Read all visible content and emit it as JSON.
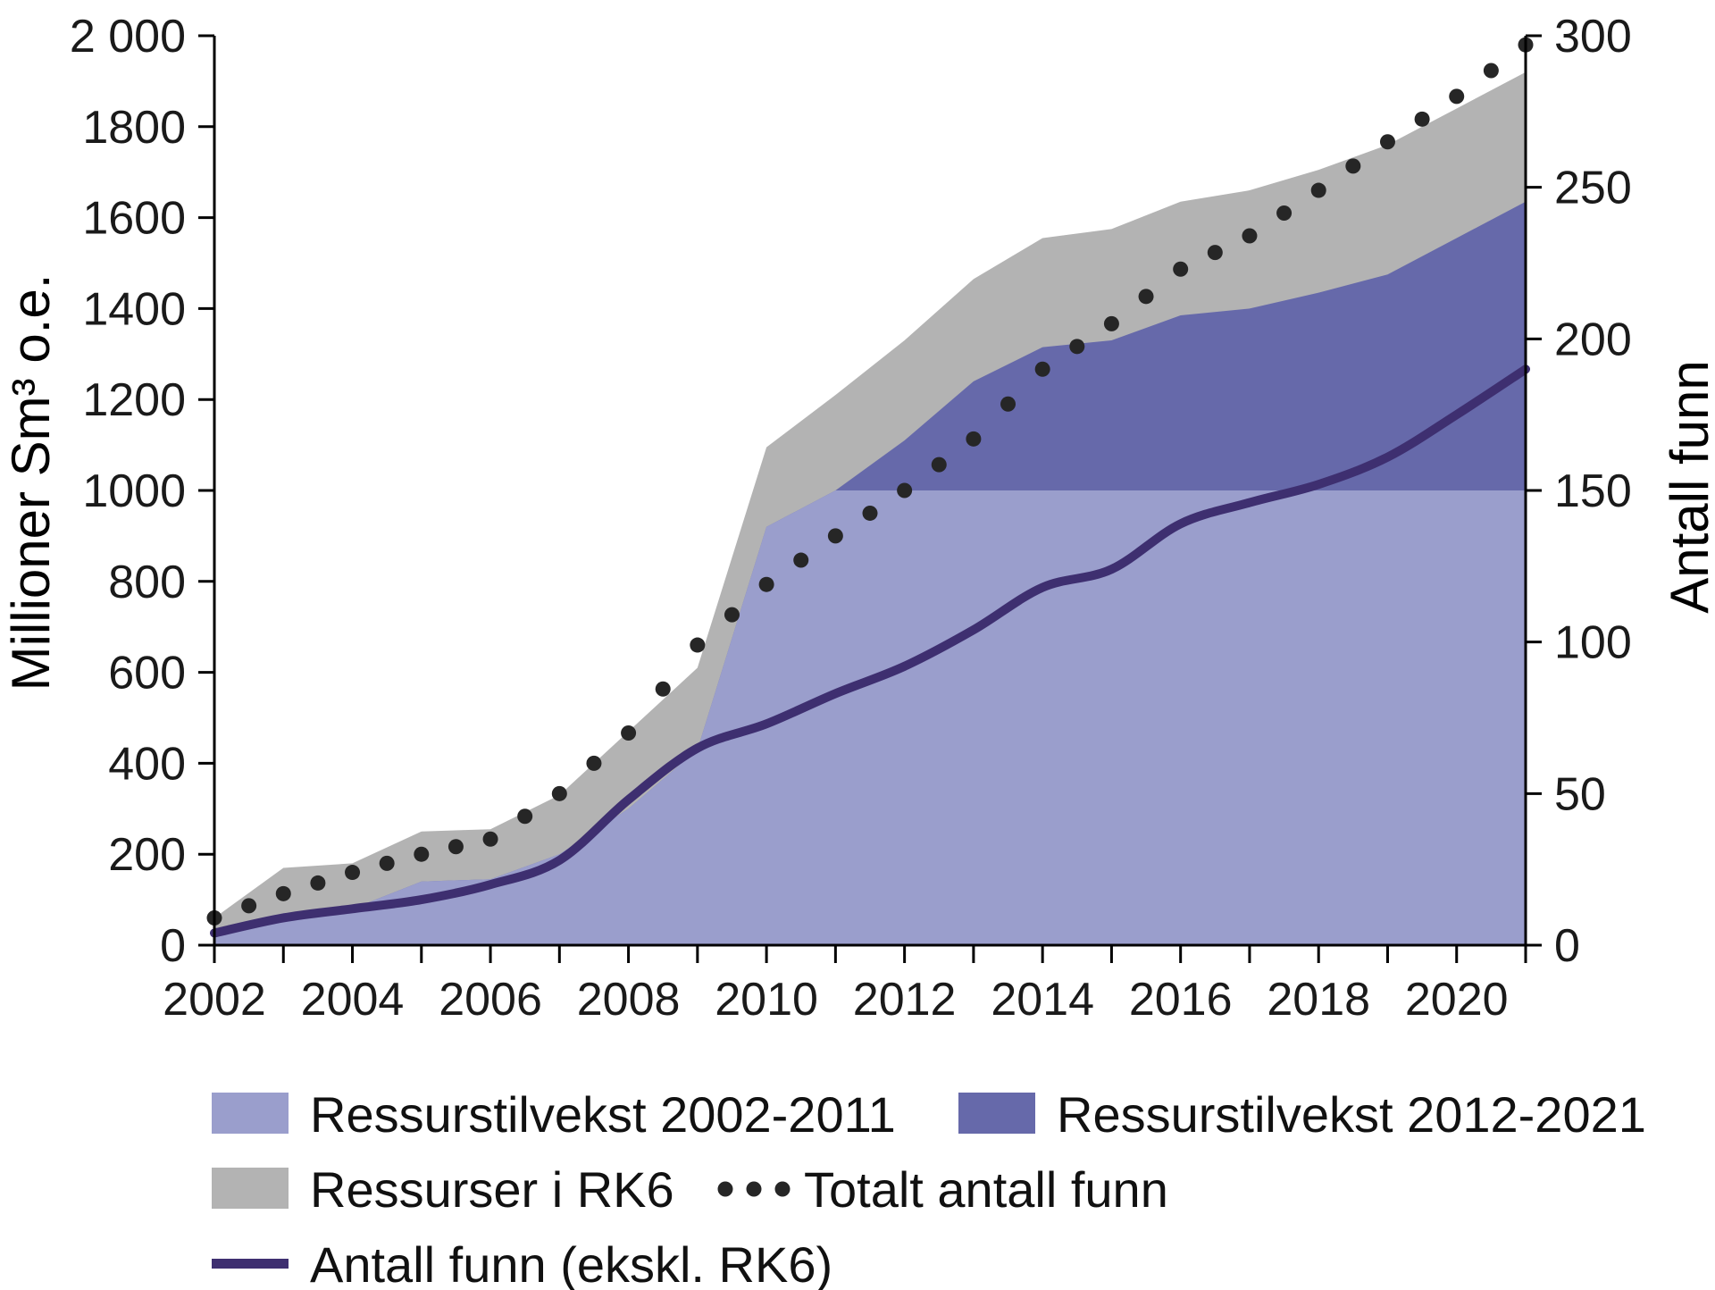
{
  "chart_data": {
    "type": "area",
    "x": [
      2002,
      2003,
      2004,
      2005,
      2006,
      2007,
      2008,
      2009,
      2010,
      2011,
      2012,
      2013,
      2014,
      2015,
      2016,
      2017,
      2018,
      2019,
      2020,
      2021
    ],
    "x_ticks": [
      "2002",
      "2004",
      "2006",
      "2008",
      "2010",
      "2012",
      "2014",
      "2016",
      "2018",
      "2020"
    ],
    "left_axis": {
      "label": "Millioner Sm³ o.e.",
      "ylim": [
        0,
        2000
      ],
      "tick_labels": [
        "0",
        "200",
        "400",
        "600",
        "800",
        "1000",
        "1200",
        "1400",
        "1600",
        "1800",
        "2 000"
      ]
    },
    "right_axis": {
      "label": "Antall funn",
      "ylim": [
        0,
        300
      ],
      "tick_labels": [
        "0",
        "50",
        "100",
        "150",
        "200",
        "250",
        "300"
      ]
    },
    "series": [
      {
        "name": "Ressurser i RK6",
        "kind": "area-total",
        "axis": "left",
        "color": "#b3b3b3",
        "values": [
          60,
          170,
          180,
          250,
          255,
          330,
          470,
          610,
          1095,
          1210,
          1330,
          1465,
          1555,
          1575,
          1635,
          1660,
          1705,
          1760,
          1840,
          1920
        ]
      },
      {
        "name": "Ressurstilvekst 2012-2021",
        "kind": "area-total",
        "axis": "left",
        "color": "#6669aa",
        "values": [
          25,
          70,
          80,
          140,
          145,
          200,
          300,
          430,
          920,
          1000,
          1110,
          1240,
          1315,
          1330,
          1385,
          1400,
          1435,
          1475,
          1555,
          1635
        ]
      },
      {
        "name": "Ressurstilvekst 2002-2011",
        "kind": "area-capped",
        "axis": "left",
        "color": "#9a9ecc",
        "cap": 1000
      },
      {
        "name": "Totalt antall funn",
        "kind": "dotted-line",
        "axis": "right",
        "color": "#262626",
        "values": [
          9,
          17,
          24,
          30,
          35,
          50,
          70,
          99,
          119,
          135,
          150,
          167,
          190,
          205,
          223,
          234,
          249,
          265,
          280,
          297
        ]
      },
      {
        "name": "Antall funn (ekskl. RK6)",
        "kind": "line",
        "axis": "right",
        "color": "#3e2f70",
        "values": [
          4,
          9,
          12,
          15,
          20,
          28,
          48,
          65,
          73,
          83,
          92,
          104,
          118,
          124,
          139,
          146,
          152,
          161,
          175,
          190
        ]
      }
    ],
    "legend": {
      "placement": "bottom",
      "items": [
        {
          "label": "Ressurstilvekst 2002-2011",
          "swatch": "rect",
          "color": "#9a9ecc"
        },
        {
          "label": "Ressurstilvekst 2012-2021",
          "swatch": "rect",
          "color": "#6669aa"
        },
        {
          "label": "Ressurser i RK6",
          "swatch": "rect",
          "color": "#b3b3b3"
        },
        {
          "label": "Totalt antall funn",
          "swatch": "dots",
          "color": "#262626"
        },
        {
          "label": "Antall funn (ekskl. RK6)",
          "swatch": "line",
          "color": "#3e2f70"
        }
      ]
    },
    "grid": false
  }
}
